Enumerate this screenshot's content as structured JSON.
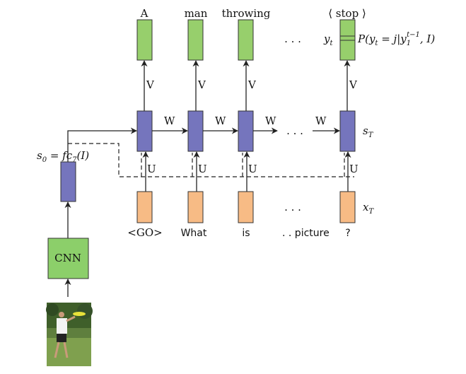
{
  "colors": {
    "output_box": "#97cf6c",
    "hidden_box": "#7575bd",
    "input_box": "#f7bb85",
    "cnn_box": "#8ccf6a",
    "line": "#222222"
  },
  "outputs": [
    "A",
    "man",
    "throwing",
    "⟨ stop ⟩"
  ],
  "inputs": [
    "<GO>",
    "What",
    "is",
    ". .  picture",
    "?"
  ],
  "edges": {
    "V": "V",
    "W": "W",
    "U": "U"
  },
  "dots": ". . .",
  "cnn_label": "CNN",
  "s0_label": "s",
  "s0_sub": "0",
  "s0_rhs": " = fc",
  "s0_rhs_sub": "7",
  "s0_rhs_tail": "(I)",
  "yt_label": "y",
  "yt_sub": "t",
  "prob_prefix": "P(y",
  "prob_sub_t": "t",
  "prob_mid": " = j|y",
  "prob_sub_1": "1",
  "prob_sup": "t−1",
  "prob_tail": ", I)",
  "sT_label": "s",
  "sT_sub": "T",
  "xT_label": "x",
  "xT_sub": "T",
  "photo_icon": "frisbee-player-photo"
}
